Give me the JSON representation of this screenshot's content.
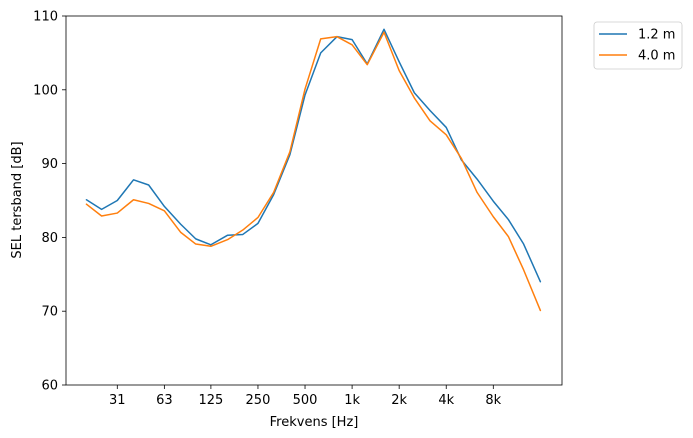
{
  "chart_data": {
    "type": "line",
    "xlabel": "Frekvens [Hz]",
    "ylabel": "SEL tersband [dB]",
    "xscale": "log",
    "x": [
      20,
      25,
      31.5,
      40,
      50,
      63,
      80,
      100,
      125,
      160,
      200,
      250,
      315,
      400,
      500,
      630,
      800,
      1000,
      1250,
      1600,
      2000,
      2500,
      3150,
      4000,
      5000,
      6300,
      8000,
      10000,
      12500,
      16000
    ],
    "xticks": [
      {
        "value": 31.5,
        "label": "31"
      },
      {
        "value": 63,
        "label": "63"
      },
      {
        "value": 125,
        "label": "125"
      },
      {
        "value": 250,
        "label": "250"
      },
      {
        "value": 500,
        "label": "500"
      },
      {
        "value": 1000,
        "label": "1k"
      },
      {
        "value": 2000,
        "label": "2k"
      },
      {
        "value": 4000,
        "label": "4k"
      },
      {
        "value": 8000,
        "label": "8k"
      }
    ],
    "xlim": [
      14.8,
      22000
    ],
    "ylim": [
      60,
      110
    ],
    "yticks": [
      60,
      70,
      80,
      90,
      100,
      110
    ],
    "legend_position": "outside-top-right",
    "grid": false,
    "series": [
      {
        "name": "1.2 m",
        "color": "#1f77b4",
        "values": [
          85.1,
          83.8,
          85.0,
          87.8,
          87.1,
          84.2,
          81.8,
          79.8,
          79.0,
          80.3,
          80.4,
          81.9,
          85.8,
          91.2,
          99.3,
          105.0,
          107.2,
          106.8,
          103.5,
          108.2,
          103.8,
          99.6,
          97.2,
          94.9,
          90.5,
          87.9,
          84.9,
          82.4,
          79.1,
          74.0
        ]
      },
      {
        "name": "4.0 m",
        "color": "#ff7f0e",
        "values": [
          84.5,
          82.9,
          83.3,
          85.1,
          84.6,
          83.6,
          80.7,
          79.1,
          78.8,
          79.7,
          81.0,
          82.7,
          86.1,
          91.6,
          100.1,
          106.9,
          107.2,
          106.1,
          103.4,
          107.8,
          102.6,
          98.9,
          95.8,
          93.9,
          90.7,
          86.1,
          82.8,
          80.1,
          75.6,
          70.1
        ]
      }
    ]
  }
}
